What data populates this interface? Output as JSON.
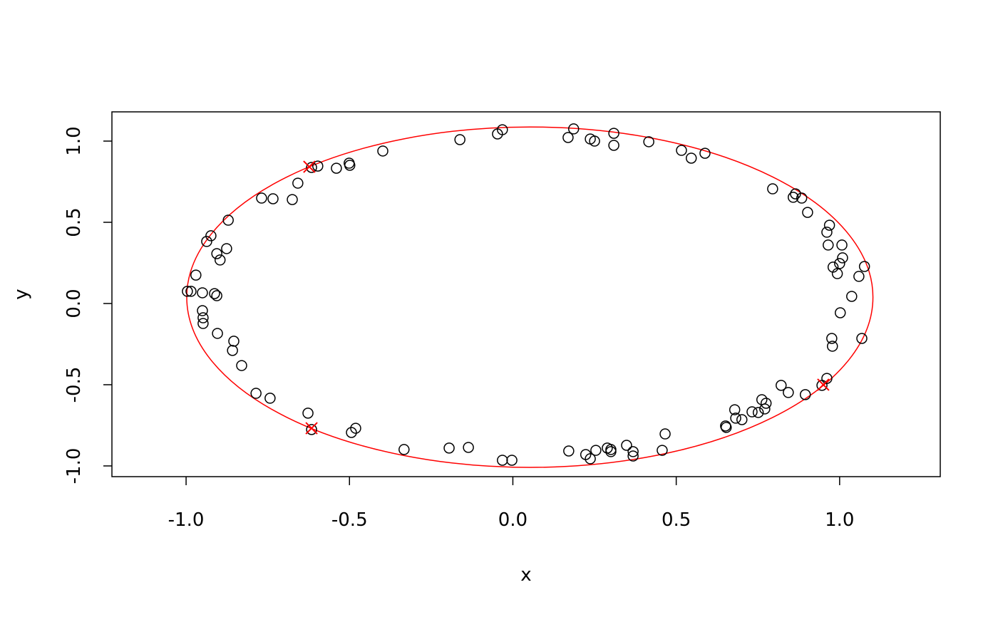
{
  "chart_data": {
    "type": "scatter",
    "xlabel": "x",
    "ylabel": "y",
    "xlim": [
      -1.227,
      1.308
    ],
    "ylim": [
      -1.066,
      1.18
    ],
    "xticks": [
      {
        "value": -1,
        "label": "-1.0"
      },
      {
        "value": -0.5,
        "label": "-0.5"
      },
      {
        "value": 0,
        "label": "0.0"
      },
      {
        "value": 0.5,
        "label": "0.5"
      },
      {
        "value": 1,
        "label": "1.0"
      }
    ],
    "yticks": [
      {
        "value": -1,
        "label": "-1.0"
      },
      {
        "value": -0.5,
        "label": "-0.5"
      },
      {
        "value": 0,
        "label": "0.0"
      },
      {
        "value": 0.5,
        "label": "0.5"
      },
      {
        "value": 1,
        "label": "1.0"
      }
    ],
    "ellipse": {
      "center": [
        0.052,
        0.039
      ],
      "radii": [
        1.05,
        1.048
      ],
      "color": "#ff0000"
    },
    "series": [
      {
        "color": "#000000",
        "marker": "circle",
        "x": [
          -0.616,
          -0.597,
          -0.54,
          -0.501,
          -0.499,
          -0.398,
          -0.162,
          -0.047,
          -0.032,
          0.169,
          0.186,
          0.237,
          0.25,
          0.309,
          0.309,
          0.416,
          0.516,
          0.546,
          0.588,
          0.795,
          0.858,
          0.865,
          0.884,
          0.902,
          0.969,
          0.961,
          0.965,
          1.007,
          1.009,
          0.98,
          1.0,
          1.076,
          0.993,
          1.059,
          1.037,
          1.002,
          1.068,
          0.976,
          0.978,
          0.961,
          0.946,
          0.895,
          0.821,
          0.843,
          0.762,
          0.775,
          0.771,
          0.732,
          0.751,
          0.679,
          0.682,
          0.701,
          0.651,
          0.653,
          0.466,
          0.457,
          0.368,
          0.368,
          0.348,
          0.3,
          0.289,
          0.3,
          0.254,
          0.223,
          0.237,
          0.171,
          -0.003,
          -0.032,
          -0.136,
          -0.195,
          -0.333,
          -0.481,
          -0.494,
          -0.616,
          -0.627,
          -0.743,
          -0.786,
          -0.83,
          -0.858,
          -0.854,
          -0.904,
          -0.948,
          -0.948,
          -0.95,
          -0.906,
          -0.913,
          -0.95,
          -0.996,
          -0.985,
          -0.97,
          -0.896,
          -0.906,
          -0.876,
          -0.937,
          -0.924,
          -0.871,
          -0.769,
          -0.734,
          -0.675,
          -0.658
        ],
        "y": [
          0.838,
          0.846,
          0.833,
          0.864,
          0.851,
          0.939,
          1.009,
          1.044,
          1.07,
          1.022,
          1.075,
          1.013,
          1.0,
          1.048,
          0.974,
          0.996,
          0.943,
          0.895,
          0.925,
          0.706,
          0.654,
          0.675,
          0.649,
          0.561,
          0.482,
          0.439,
          0.36,
          0.36,
          0.281,
          0.224,
          0.246,
          0.228,
          0.184,
          0.167,
          0.044,
          -0.057,
          -0.215,
          -0.215,
          -0.263,
          -0.461,
          -0.504,
          -0.561,
          -0.504,
          -0.548,
          -0.592,
          -0.614,
          -0.649,
          -0.667,
          -0.671,
          -0.654,
          -0.706,
          -0.715,
          -0.754,
          -0.763,
          -0.803,
          -0.904,
          -0.912,
          -0.939,
          -0.873,
          -0.899,
          -0.89,
          -0.912,
          -0.904,
          -0.93,
          -0.956,
          -0.908,
          -0.965,
          -0.965,
          -0.886,
          -0.89,
          -0.899,
          -0.768,
          -0.794,
          -0.776,
          -0.675,
          -0.583,
          -0.553,
          -0.382,
          -0.289,
          -0.232,
          -0.184,
          -0.123,
          -0.088,
          -0.044,
          0.048,
          0.061,
          0.066,
          0.075,
          0.075,
          0.175,
          0.268,
          0.307,
          0.338,
          0.382,
          0.417,
          0.513,
          0.649,
          0.645,
          0.64,
          0.741
        ]
      },
      {
        "color": "#ff0000",
        "marker": "x",
        "x": [
          -0.623,
          -0.616,
          0.95
        ],
        "y": [
          0.842,
          -0.768,
          -0.5
        ]
      }
    ]
  }
}
